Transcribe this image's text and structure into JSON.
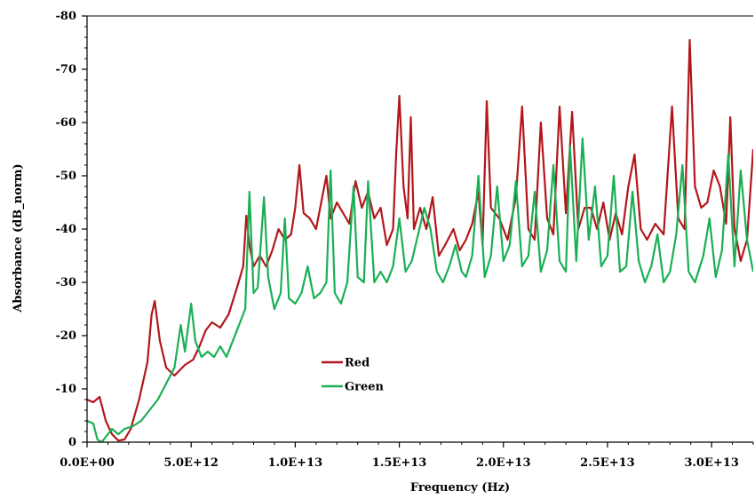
{
  "chart_data": {
    "type": "line",
    "title": "",
    "xlabel": "Frequency (Hz)",
    "ylabel": "Absorbance (dB_norm)",
    "xlim": [
      0,
      32000000000000
    ],
    "ylim": [
      0,
      -80
    ],
    "y_axis_inverted": true,
    "grid": false,
    "legend_position": "lower-middle",
    "x_ticks": [
      0,
      5000000000000,
      10000000000000,
      15000000000000,
      20000000000000,
      25000000000000,
      30000000000000
    ],
    "x_tick_labels": [
      "0.0E+00",
      "5.0E+12",
      "1.0E+13",
      "1.5E+13",
      "2.0E+13",
      "2.5E+13",
      "3.0E+13"
    ],
    "y_ticks": [
      0,
      -10,
      -20,
      -30,
      -40,
      -50,
      -60,
      -70,
      -80
    ],
    "y_tick_labels": [
      "0",
      "-10",
      "-20",
      "-30",
      "-40",
      "-50",
      "-60",
      "-70",
      "-80"
    ],
    "series": [
      {
        "name": "Red",
        "color": "#b2161b",
        "points": [
          [
            0,
            -8
          ],
          [
            300000000000,
            -7.5
          ],
          [
            600000000000,
            -8.5
          ],
          [
            900000000000,
            -4
          ],
          [
            1200000000000,
            -1.5
          ],
          [
            1500000000000,
            -0.3
          ],
          [
            1800000000000,
            -0.5
          ],
          [
            2100000000000,
            -2.5
          ],
          [
            2500000000000,
            -8
          ],
          [
            2900000000000,
            -15
          ],
          [
            3100000000000,
            -24
          ],
          [
            3250000000000,
            -26.5
          ],
          [
            3500000000000,
            -19
          ],
          [
            3800000000000,
            -14
          ],
          [
            4200000000000,
            -12.5
          ],
          [
            4700000000000,
            -14.5
          ],
          [
            5100000000000,
            -15.5
          ],
          [
            5400000000000,
            -18
          ],
          [
            5700000000000,
            -21
          ],
          [
            6000000000000,
            -22.5
          ],
          [
            6400000000000,
            -21.5
          ],
          [
            6800000000000,
            -24
          ],
          [
            7200000000000,
            -29
          ],
          [
            7500000000000,
            -33
          ],
          [
            7650000000000,
            -42.5
          ],
          [
            7800000000000,
            -37
          ],
          [
            8000000000000,
            -33
          ],
          [
            8300000000000,
            -35
          ],
          [
            8600000000000,
            -33
          ],
          [
            8900000000000,
            -36
          ],
          [
            9200000000000,
            -40
          ],
          [
            9500000000000,
            -38
          ],
          [
            9800000000000,
            -39
          ],
          [
            10000000000000,
            -44
          ],
          [
            10200000000000,
            -52
          ],
          [
            10400000000000,
            -43
          ],
          [
            10700000000000,
            -42
          ],
          [
            11000000000000,
            -40
          ],
          [
            11300000000000,
            -46
          ],
          [
            11500000000000,
            -50
          ],
          [
            11700000000000,
            -42
          ],
          [
            12000000000000,
            -45
          ],
          [
            12300000000000,
            -43
          ],
          [
            12600000000000,
            -41
          ],
          [
            12900000000000,
            -49
          ],
          [
            13200000000000,
            -44
          ],
          [
            13500000000000,
            -47
          ],
          [
            13800000000000,
            -42
          ],
          [
            14100000000000,
            -44
          ],
          [
            14400000000000,
            -37
          ],
          [
            14700000000000,
            -40
          ],
          [
            14850000000000,
            -54
          ],
          [
            15000000000000,
            -65
          ],
          [
            15200000000000,
            -48
          ],
          [
            15400000000000,
            -42
          ],
          [
            15550000000000,
            -61
          ],
          [
            15700000000000,
            -40
          ],
          [
            16000000000000,
            -44
          ],
          [
            16300000000000,
            -40
          ],
          [
            16600000000000,
            -46
          ],
          [
            16900000000000,
            -35
          ],
          [
            17200000000000,
            -37
          ],
          [
            17600000000000,
            -40
          ],
          [
            17900000000000,
            -36
          ],
          [
            18200000000000,
            -38
          ],
          [
            18500000000000,
            -41
          ],
          [
            18800000000000,
            -47
          ],
          [
            19000000000000,
            -37
          ],
          [
            19200000000000,
            -64
          ],
          [
            19400000000000,
            -44
          ],
          [
            19800000000000,
            -42
          ],
          [
            20200000000000,
            -38
          ],
          [
            20600000000000,
            -46
          ],
          [
            20900000000000,
            -63
          ],
          [
            21200000000000,
            -40
          ],
          [
            21500000000000,
            -38
          ],
          [
            21800000000000,
            -60
          ],
          [
            22100000000000,
            -42
          ],
          [
            22400000000000,
            -39
          ],
          [
            22700000000000,
            -63
          ],
          [
            23000000000000,
            -43
          ],
          [
            23300000000000,
            -62
          ],
          [
            23600000000000,
            -40
          ],
          [
            23900000000000,
            -44
          ],
          [
            24200000000000,
            -44
          ],
          [
            24500000000000,
            -40
          ],
          [
            24800000000000,
            -45
          ],
          [
            25100000000000,
            -38
          ],
          [
            25400000000000,
            -43
          ],
          [
            25700000000000,
            -39
          ],
          [
            26000000000000,
            -48
          ],
          [
            26300000000000,
            -54
          ],
          [
            26600000000000,
            -40
          ],
          [
            26900000000000,
            -38
          ],
          [
            27300000000000,
            -41
          ],
          [
            27700000000000,
            -39
          ],
          [
            28100000000000,
            -63
          ],
          [
            28400000000000,
            -42
          ],
          [
            28700000000000,
            -40
          ],
          [
            28950000000000,
            -75.5
          ],
          [
            29200000000000,
            -48
          ],
          [
            29500000000000,
            -44
          ],
          [
            29800000000000,
            -45
          ],
          [
            30100000000000,
            -51
          ],
          [
            30400000000000,
            -48
          ],
          [
            30700000000000,
            -41
          ],
          [
            30900000000000,
            -61
          ],
          [
            31100000000000,
            -40
          ],
          [
            31400000000000,
            -34
          ],
          [
            31700000000000,
            -38
          ],
          [
            32000000000000,
            -55
          ]
        ]
      },
      {
        "name": "Green",
        "color": "#1aaf54",
        "points": [
          [
            0,
            -4
          ],
          [
            300000000000,
            -3.5
          ],
          [
            500000000000,
            -0.5
          ],
          [
            700000000000,
            0
          ],
          [
            900000000000,
            -1
          ],
          [
            1200000000000,
            -2.5
          ],
          [
            1500000000000,
            -1.5
          ],
          [
            1800000000000,
            -2.5
          ],
          [
            2200000000000,
            -3
          ],
          [
            2600000000000,
            -4
          ],
          [
            3000000000000,
            -6
          ],
          [
            3400000000000,
            -8
          ],
          [
            3800000000000,
            -11
          ],
          [
            4200000000000,
            -14
          ],
          [
            4500000000000,
            -22
          ],
          [
            4700000000000,
            -17
          ],
          [
            5000000000000,
            -26
          ],
          [
            5200000000000,
            -19
          ],
          [
            5500000000000,
            -16
          ],
          [
            5800000000000,
            -17
          ],
          [
            6100000000000,
            -16
          ],
          [
            6400000000000,
            -18
          ],
          [
            6700000000000,
            -16
          ],
          [
            7000000000000,
            -19
          ],
          [
            7300000000000,
            -22
          ],
          [
            7600000000000,
            -25
          ],
          [
            7800000000000,
            -47
          ],
          [
            8000000000000,
            -28
          ],
          [
            8200000000000,
            -29
          ],
          [
            8500000000000,
            -46
          ],
          [
            8700000000000,
            -31
          ],
          [
            9000000000000,
            -25
          ],
          [
            9300000000000,
            -28
          ],
          [
            9500000000000,
            -42
          ],
          [
            9700000000000,
            -27
          ],
          [
            10000000000000,
            -26
          ],
          [
            10300000000000,
            -28
          ],
          [
            10600000000000,
            -33
          ],
          [
            10900000000000,
            -27
          ],
          [
            11200000000000,
            -28
          ],
          [
            11500000000000,
            -30
          ],
          [
            11700000000000,
            -51
          ],
          [
            11900000000000,
            -28
          ],
          [
            12200000000000,
            -26
          ],
          [
            12500000000000,
            -30
          ],
          [
            12800000000000,
            -48
          ],
          [
            13000000000000,
            -31
          ],
          [
            13300000000000,
            -30
          ],
          [
            13500000000000,
            -49
          ],
          [
            13800000000000,
            -30
          ],
          [
            14100000000000,
            -32
          ],
          [
            14400000000000,
            -30
          ],
          [
            14700000000000,
            -33
          ],
          [
            15000000000000,
            -42
          ],
          [
            15300000000000,
            -32
          ],
          [
            15600000000000,
            -34
          ],
          [
            15900000000000,
            -39
          ],
          [
            16200000000000,
            -44
          ],
          [
            16500000000000,
            -40
          ],
          [
            16800000000000,
            -32
          ],
          [
            17100000000000,
            -30
          ],
          [
            17400000000000,
            -33
          ],
          [
            17700000000000,
            -37
          ],
          [
            18000000000000,
            -32
          ],
          [
            18200000000000,
            -31
          ],
          [
            18500000000000,
            -35
          ],
          [
            18800000000000,
            -50
          ],
          [
            19100000000000,
            -31
          ],
          [
            19400000000000,
            -35
          ],
          [
            19700000000000,
            -48
          ],
          [
            20000000000000,
            -34
          ],
          [
            20300000000000,
            -37
          ],
          [
            20600000000000,
            -49
          ],
          [
            20900000000000,
            -33
          ],
          [
            21200000000000,
            -35
          ],
          [
            21500000000000,
            -47
          ],
          [
            21800000000000,
            -32
          ],
          [
            22100000000000,
            -36
          ],
          [
            22400000000000,
            -52
          ],
          [
            22700000000000,
            -34
          ],
          [
            23000000000000,
            -32
          ],
          [
            23200000000000,
            -55.5
          ],
          [
            23500000000000,
            -34
          ],
          [
            23800000000000,
            -57
          ],
          [
            24100000000000,
            -38
          ],
          [
            24400000000000,
            -48
          ],
          [
            24700000000000,
            -33
          ],
          [
            25000000000000,
            -35
          ],
          [
            25300000000000,
            -50
          ],
          [
            25600000000000,
            -32
          ],
          [
            25900000000000,
            -33
          ],
          [
            26200000000000,
            -47
          ],
          [
            26500000000000,
            -34
          ],
          [
            26800000000000,
            -30
          ],
          [
            27100000000000,
            -33
          ],
          [
            27400000000000,
            -39
          ],
          [
            27700000000000,
            -30
          ],
          [
            28000000000000,
            -32
          ],
          [
            28300000000000,
            -39
          ],
          [
            28600000000000,
            -52
          ],
          [
            28900000000000,
            -32
          ],
          [
            29200000000000,
            -30
          ],
          [
            29600000000000,
            -35
          ],
          [
            29900000000000,
            -42
          ],
          [
            30200000000000,
            -31
          ],
          [
            30500000000000,
            -36
          ],
          [
            30800000000000,
            -54
          ],
          [
            31100000000000,
            -33
          ],
          [
            31400000000000,
            -51
          ],
          [
            31700000000000,
            -38
          ],
          [
            32000000000000,
            -32
          ]
        ]
      }
    ]
  }
}
